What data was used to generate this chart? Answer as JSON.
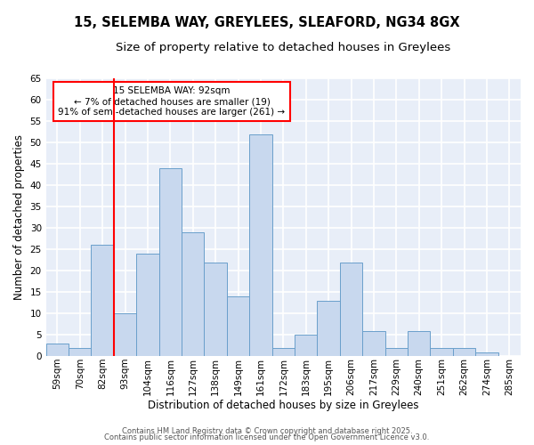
{
  "title1": "15, SELEMBA WAY, GREYLEES, SLEAFORD, NG34 8GX",
  "title2": "Size of property relative to detached houses in Greylees",
  "xlabel": "Distribution of detached houses by size in Greylees",
  "ylabel": "Number of detached properties",
  "bar_color": "#c8d8ee",
  "bar_edge_color": "#6a9fcb",
  "bg_color": "#e8eef8",
  "grid_color": "#ffffff",
  "fig_bg": "#ffffff",
  "categories": [
    "59sqm",
    "70sqm",
    "82sqm",
    "93sqm",
    "104sqm",
    "116sqm",
    "127sqm",
    "138sqm",
    "149sqm",
    "161sqm",
    "172sqm",
    "183sqm",
    "195sqm",
    "206sqm",
    "217sqm",
    "229sqm",
    "240sqm",
    "251sqm",
    "262sqm",
    "274sqm",
    "285sqm"
  ],
  "values": [
    3,
    2,
    26,
    10,
    24,
    44,
    29,
    22,
    14,
    52,
    2,
    5,
    13,
    22,
    6,
    2,
    6,
    2,
    2,
    1,
    0
  ],
  "red_line_x": 2.5,
  "annotation_title": "15 SELEMBA WAY: 92sqm",
  "annotation_line1": "← 7% of detached houses are smaller (19)",
  "annotation_line2": "91% of semi-detached houses are larger (261) →",
  "ylim": [
    0,
    65
  ],
  "yticks": [
    0,
    5,
    10,
    15,
    20,
    25,
    30,
    35,
    40,
    45,
    50,
    55,
    60,
    65
  ],
  "footer1": "Contains HM Land Registry data © Crown copyright and database right 2025.",
  "footer2": "Contains public sector information licensed under the Open Government Licence v3.0.",
  "title1_fontsize": 10.5,
  "title2_fontsize": 9.5,
  "tick_fontsize": 7.5,
  "ylabel_fontsize": 8.5,
  "xlabel_fontsize": 8.5,
  "annotation_fontsize": 7.5,
  "footer_fontsize": 6.0
}
